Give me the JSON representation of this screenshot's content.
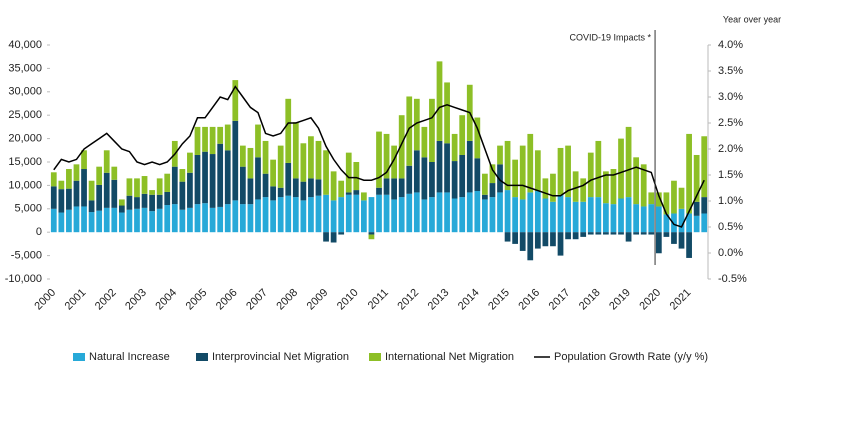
{
  "chart_data": {
    "type": "bar",
    "stacked": true,
    "y2_label": "Year over year",
    "annotation": {
      "text": "COVID-19 Impacts *",
      "category": "2020"
    },
    "legend": "bottom",
    "grid": false,
    "categories": [
      "2000",
      null,
      null,
      null,
      "2001",
      null,
      null,
      null,
      "2002",
      null,
      null,
      null,
      "2003",
      null,
      null,
      null,
      "2004",
      null,
      null,
      null,
      "2005",
      null,
      null,
      null,
      "2006",
      null,
      null,
      null,
      "2007",
      null,
      null,
      null,
      "2008",
      null,
      null,
      null,
      "2009",
      null,
      null,
      null,
      "2010",
      null,
      null,
      null,
      "2011",
      null,
      null,
      null,
      "2012",
      null,
      null,
      null,
      "2013",
      null,
      null,
      null,
      "2014",
      null,
      null,
      null,
      "2015",
      null,
      null,
      null,
      "2016",
      null,
      null,
      null,
      "2017",
      null,
      null,
      null,
      "2018",
      null,
      null,
      null,
      "2019",
      null,
      null,
      null,
      "2020",
      null,
      null,
      null,
      "2021",
      null,
      null
    ],
    "ylim": [
      -10000,
      40000
    ],
    "yticks": [
      {
        "value": -10000,
        "label": "-10,000"
      },
      {
        "value": -5000,
        "label": "-5,000"
      },
      0,
      {
        "value": 5000,
        "label": "5,000"
      },
      {
        "value": 10000,
        "label": "10,000"
      },
      {
        "value": 15000,
        "label": "15,000"
      },
      {
        "value": 20000,
        "label": "20,000"
      },
      {
        "value": 25000,
        "label": "25,000"
      },
      {
        "value": 30000,
        "label": "30,000"
      },
      {
        "value": 35000,
        "label": "35,000"
      },
      {
        "value": 40000,
        "label": "40,000"
      }
    ],
    "y2lim": [
      -0.5,
      4.0
    ],
    "y2ticks": [
      {
        "value": -0.5,
        "label": "-0.5%"
      },
      {
        "value": 0,
        "label": "0.0%"
      },
      {
        "value": 0.5,
        "label": "0.5%"
      },
      {
        "value": 1.0,
        "label": "1.0%"
      },
      {
        "value": 1.5,
        "label": "1.5%"
      },
      {
        "value": 2.0,
        "label": "2.0%"
      },
      {
        "value": 2.5,
        "label": "2.5%"
      },
      {
        "value": 3.0,
        "label": "3.0%"
      },
      {
        "value": 3.5,
        "label": "3.5%"
      },
      {
        "value": 4.0,
        "label": "4.0%"
      }
    ],
    "series": [
      {
        "name": "Natural Increase",
        "type": "bar",
        "color": "#27a9d8",
        "values": [
          5000,
          4200,
          4800,
          5500,
          5500,
          4300,
          4600,
          5200,
          5200,
          4200,
          4800,
          5000,
          5200,
          4500,
          5000,
          5800,
          6000,
          4800,
          5200,
          6000,
          6200,
          5200,
          5400,
          6000,
          6800,
          6000,
          6000,
          7000,
          7500,
          6800,
          7500,
          7800,
          7500,
          6800,
          7500,
          7800,
          8000,
          6800,
          7500,
          8000,
          8000,
          6800,
          7500,
          8000,
          8000,
          7000,
          7500,
          8200,
          8500,
          7000,
          7500,
          8500,
          8500,
          7200,
          7500,
          8500,
          8800,
          7000,
          7500,
          8500,
          9000,
          7500,
          7000,
          8500,
          8800,
          7200,
          6500,
          8000,
          7500,
          6500,
          6500,
          7500,
          7500,
          6200,
          6000,
          7200,
          7500,
          6000,
          5500,
          6000,
          5500,
          3800,
          4000,
          5000,
          4000,
          3500,
          4000
        ]
      },
      {
        "name": "Interprovincial Net Migration",
        "type": "bar",
        "color": "#124a66",
        "values": [
          4800,
          5000,
          4500,
          5500,
          8000,
          2500,
          5500,
          7500,
          6000,
          1500,
          3000,
          2500,
          3000,
          3500,
          3000,
          2800,
          8000,
          6000,
          7500,
          10500,
          11000,
          11500,
          13500,
          11500,
          17000,
          8000,
          5500,
          9000,
          5000,
          3000,
          2000,
          7000,
          4000,
          4000,
          4000,
          3500,
          -2000,
          -2200,
          -500,
          500,
          1000,
          0,
          -500,
          1500,
          3500,
          4500,
          4000,
          6000,
          9000,
          9000,
          7500,
          11000,
          10500,
          8000,
          9000,
          11000,
          7000,
          1000,
          3000,
          6000,
          -2000,
          -2500,
          -4000,
          -6000,
          -3500,
          -3000,
          -3000,
          -5000,
          -1500,
          -1500,
          -1000,
          -500,
          -500,
          -500,
          -500,
          -500,
          -2000,
          -500,
          -500,
          -500,
          -4500,
          -1000,
          -2500,
          -3500,
          -5500,
          3000,
          3500
        ]
      },
      {
        "name": "International Net Migration",
        "type": "bar",
        "color": "#8dbf26",
        "values": [
          3000,
          1800,
          4200,
          3500,
          4000,
          4200,
          3900,
          4800,
          2800,
          1300,
          3700,
          4000,
          3800,
          1000,
          3500,
          3900,
          5500,
          2700,
          4300,
          6000,
          5300,
          5800,
          3600,
          5500,
          8700,
          4500,
          6500,
          7000,
          7000,
          5700,
          9000,
          13700,
          12000,
          8200,
          9000,
          8200,
          9500,
          6200,
          3500,
          8500,
          6000,
          1700,
          -1000,
          12000,
          9500,
          7000,
          13500,
          14800,
          11000,
          6500,
          13500,
          17000,
          13000,
          5800,
          8500,
          12000,
          8700,
          4500,
          4000,
          4000,
          10500,
          8000,
          11500,
          12500,
          8700,
          4300,
          6000,
          10000,
          11000,
          6500,
          5000,
          9500,
          12000,
          6800,
          7500,
          12800,
          15000,
          10000,
          9000,
          2500,
          3000,
          4700,
          7000,
          4500,
          17000,
          10000,
          13000
        ]
      },
      {
        "name": "Population Growth Rate (y/y %)",
        "type": "line",
        "axis": "y2",
        "color": "#000000",
        "values": [
          1.6,
          1.8,
          1.75,
          1.8,
          2.0,
          2.1,
          2.2,
          2.3,
          2.15,
          2.0,
          1.95,
          1.75,
          1.7,
          1.75,
          1.7,
          1.75,
          1.9,
          2.1,
          2.25,
          2.6,
          2.6,
          2.8,
          3.0,
          2.95,
          3.2,
          3.0,
          2.8,
          2.7,
          2.3,
          2.25,
          2.3,
          2.5,
          2.5,
          2.55,
          2.6,
          2.4,
          2.05,
          1.8,
          1.6,
          1.45,
          1.45,
          1.4,
          1.4,
          1.45,
          1.55,
          1.8,
          2.1,
          2.4,
          2.5,
          2.55,
          2.6,
          2.8,
          2.85,
          2.8,
          2.75,
          2.7,
          2.4,
          2.0,
          1.6,
          1.4,
          1.3,
          1.3,
          1.3,
          1.25,
          1.2,
          1.15,
          1.1,
          1.1,
          1.2,
          1.25,
          1.3,
          1.4,
          1.45,
          1.5,
          1.5,
          1.55,
          1.6,
          1.65,
          1.6,
          1.55,
          1.1,
          0.75,
          0.55,
          0.5,
          0.8,
          1.1,
          1.4
        ]
      }
    ]
  }
}
